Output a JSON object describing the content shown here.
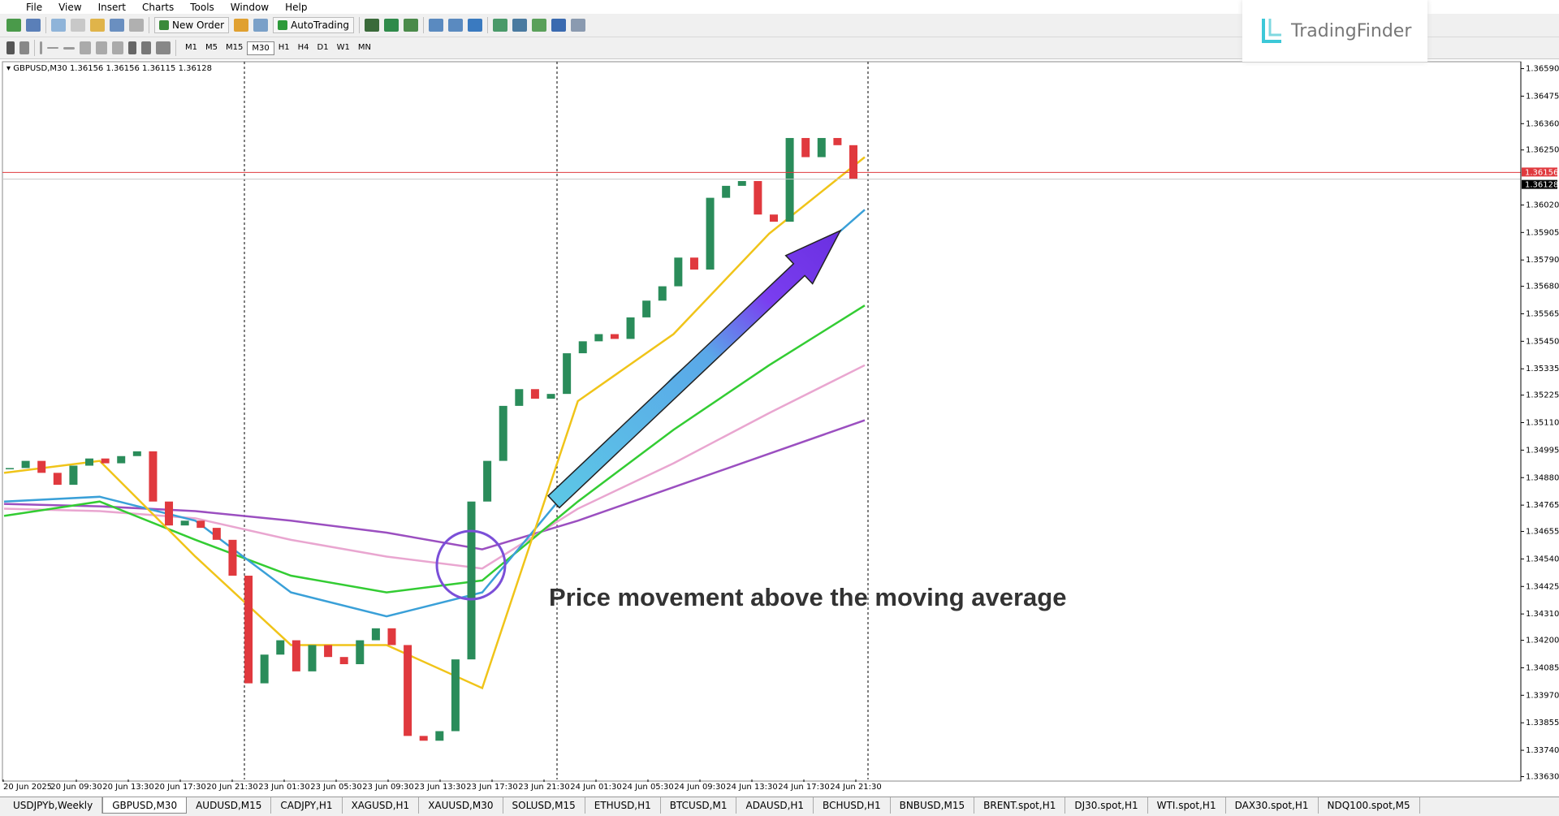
{
  "menu": [
    "File",
    "View",
    "Insert",
    "Charts",
    "Tools",
    "Window",
    "Help"
  ],
  "toolbar": {
    "new_order": "New Order",
    "autotrading": "AutoTrading",
    "timeframes": [
      "M1",
      "M5",
      "M15",
      "M30",
      "H1",
      "H4",
      "D1",
      "W1",
      "MN"
    ],
    "active_timeframe": 3
  },
  "logo": "TradingFinder",
  "tabs": [
    "USDJPYb,Weekly",
    "GBPUSD,M30",
    "AUDUSD,M15",
    "CADJPY,H1",
    "XAGUSD,H1",
    "XAUUSD,M30",
    "SOLUSD,M15",
    "ETHUSD,H1",
    "BTCUSD,M1",
    "ADAUSD,H1",
    "BCHUSD,H1",
    "BNBUSD,M15",
    "BRENT.spot,H1",
    "DJ30.spot,H1",
    "WTI.spot,H1",
    "DAX30.spot,H1",
    "NDQ100.spot,M5"
  ],
  "active_tab": 1,
  "chart_data": {
    "type": "candlestick",
    "symbol": "GBPUSD,M30",
    "quote": [
      "1.36156",
      "1.36156",
      "1.36115",
      "1.36128"
    ],
    "annotation": "Price movement above the moving average",
    "up_color": "#2a8c5a",
    "down_color": "#e0393e",
    "closes": [
      1.3492,
      1.3495,
      1.349,
      1.3485,
      1.3493,
      1.3496,
      1.3494,
      1.3497,
      1.3499,
      1.3478,
      1.3468,
      1.347,
      1.3467,
      1.3462,
      1.3447,
      1.3402,
      1.3414,
      1.342,
      1.3407,
      1.3418,
      1.3413,
      1.341,
      1.342,
      1.3425,
      1.3418,
      1.338,
      1.3378,
      1.3382,
      1.3412,
      1.3478,
      1.3495,
      1.3518,
      1.3525,
      1.3521,
      1.3523,
      1.354,
      1.3545,
      1.3548,
      1.3546,
      1.3555,
      1.3562,
      1.3568,
      1.358,
      1.3575,
      1.3605,
      1.361,
      1.3612,
      1.3598,
      1.3595,
      1.363,
      1.3622,
      1.363,
      1.3627,
      1.3613
    ],
    "series": [
      {
        "color": "#9b4fc0",
        "values": [
          1.3477,
          1.3476,
          1.3474,
          1.347,
          1.3465,
          1.3458,
          1.347,
          1.3484,
          1.3498,
          1.3512
        ]
      },
      {
        "color": "#e9a6d0",
        "values": [
          1.3475,
          1.3474,
          1.3471,
          1.3462,
          1.3455,
          1.345,
          1.3475,
          1.3494,
          1.3515,
          1.3535
        ]
      },
      {
        "color": "#33cc33",
        "values": [
          1.3472,
          1.3478,
          1.3462,
          1.3447,
          1.344,
          1.3445,
          1.3478,
          1.3508,
          1.3535,
          1.356
        ]
      },
      {
        "color": "#3aa0d8",
        "values": [
          1.3478,
          1.348,
          1.347,
          1.344,
          1.343,
          1.344,
          1.3488,
          1.353,
          1.3565,
          1.36
        ]
      },
      {
        "color": "#f0c419",
        "values": [
          1.349,
          1.3495,
          1.3455,
          1.3418,
          1.3418,
          1.34,
          1.352,
          1.3548,
          1.359,
          1.3622
        ]
      }
    ],
    "ylim": [
      1.33618,
      1.36619
    ],
    "yticks": [
      {
        "value": 1.3659,
        "label": "1.36590"
      },
      {
        "value": 1.36475,
        "label": "1.36475"
      },
      {
        "value": 1.3636,
        "label": "1.36360"
      },
      {
        "value": 1.3625,
        "label": "1.36250"
      },
      {
        "value": 1.3602,
        "label": "1.36020"
      },
      {
        "value": 1.35905,
        "label": "1.35905"
      },
      {
        "value": 1.3579,
        "label": "1.35790"
      },
      {
        "value": 1.3568,
        "label": "1.35680"
      },
      {
        "value": 1.35565,
        "label": "1.35565"
      },
      {
        "value": 1.3545,
        "label": "1.35450"
      },
      {
        "value": 1.35335,
        "label": "1.35335"
      },
      {
        "value": 1.35225,
        "label": "1.35225"
      },
      {
        "value": 1.3511,
        "label": "1.35110"
      },
      {
        "value": 1.34995,
        "label": "1.34995"
      },
      {
        "value": 1.3488,
        "label": "1.34880"
      },
      {
        "value": 1.34765,
        "label": "1.34765"
      },
      {
        "value": 1.34655,
        "label": "1.34655"
      },
      {
        "value": 1.3454,
        "label": "1.34540"
      },
      {
        "value": 1.34425,
        "label": "1.34425"
      },
      {
        "value": 1.3431,
        "label": "1.34310"
      },
      {
        "value": 1.342,
        "label": "1.34200"
      },
      {
        "value": 1.34085,
        "label": "1.34085"
      },
      {
        "value": 1.3397,
        "label": "1.33970"
      },
      {
        "value": 1.33855,
        "label": "1.33855"
      },
      {
        "value": 1.3374,
        "label": "1.33740"
      },
      {
        "value": 1.3363,
        "label": "1.33630"
      }
    ],
    "bid_line": {
      "value": 1.36156,
      "label": "1.36156"
    },
    "last_line": {
      "value": 1.36128,
      "label": "1.36128"
    },
    "x_labels": [
      "20 Jun 2025",
      "20 Jun 09:30",
      "20 Jun 13:30",
      "20 Jun 17:30",
      "20 Jun 21:30",
      "23 Jun 01:30",
      "23 Jun 05:30",
      "23 Jun 09:30",
      "23 Jun 13:30",
      "23 Jun 17:30",
      "23 Jun 21:30",
      "24 Jun 01:30",
      "24 Jun 05:30",
      "24 Jun 09:30",
      "24 Jun 13:30",
      "24 Jun 17:30",
      "24 Jun 21:30"
    ]
  }
}
